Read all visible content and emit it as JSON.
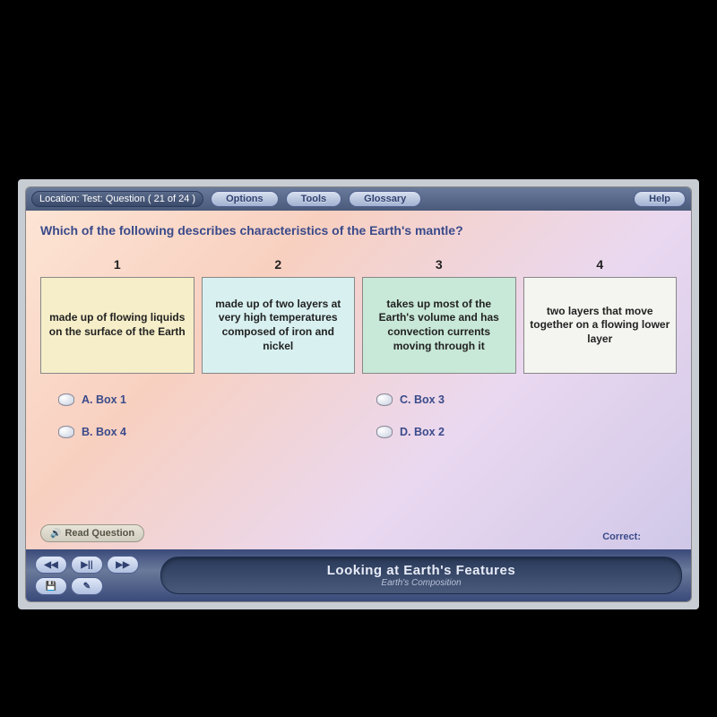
{
  "topbar": {
    "location": "Location:  Test:  Question ( 21 of 24 )",
    "options": "Options",
    "tools": "Tools",
    "glossary": "Glossary",
    "help": "Help"
  },
  "question": "Which of the following describes characteristics of the Earth's mantle?",
  "boxes": [
    {
      "num": "1",
      "text": "made up of flowing liquids on the surface of the Earth",
      "bg": "#f6eec8"
    },
    {
      "num": "2",
      "text": "made up of two layers at very high temperatures composed of iron and nickel",
      "bg": "#d8f0f0"
    },
    {
      "num": "3",
      "text": "takes up most of the Earth's volume and has convection currents moving through it",
      "bg": "#c8e8d8"
    },
    {
      "num": "4",
      "text": "two layers that move together on a flowing lower layer",
      "bg": "#f4f4f0"
    }
  ],
  "answers": {
    "a": "A. Box 1",
    "b": "B. Box 4",
    "c": "C. Box 3",
    "d": "D. Box 2"
  },
  "read_question": "Read Question",
  "correct_label": "Correct:",
  "footer": {
    "title": "Looking at Earth's Features",
    "subtitle": "Earth's Composition"
  },
  "controls": {
    "rewind": "◀◀",
    "play": "▶||",
    "forward": "▶▶",
    "floppy": "💾",
    "mic": "✎"
  }
}
